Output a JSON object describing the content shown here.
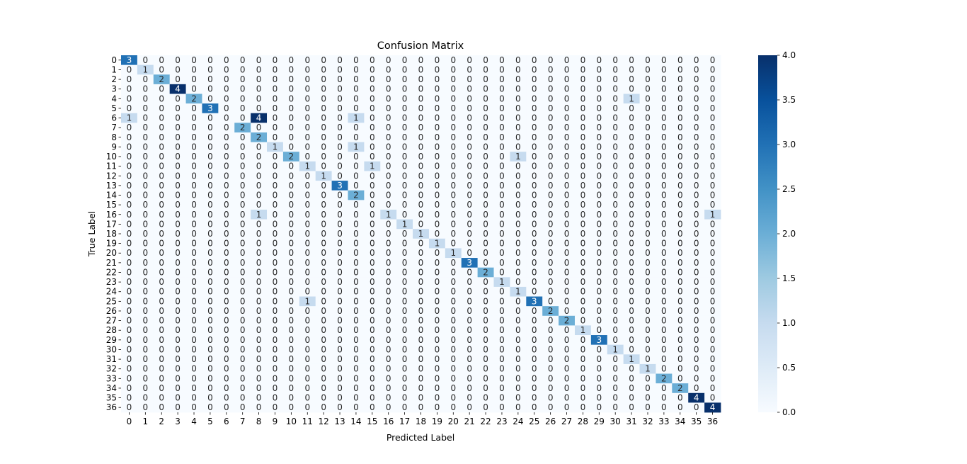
{
  "chart_data": {
    "type": "heatmap",
    "title": "Confusion Matrix",
    "xlabel": "Predicted Label",
    "ylabel": "True Label",
    "x_labels": [
      "0",
      "1",
      "2",
      "3",
      "4",
      "5",
      "6",
      "7",
      "8",
      "9",
      "10",
      "11",
      "12",
      "13",
      "14",
      "15",
      "16",
      "17",
      "18",
      "19",
      "20",
      "21",
      "22",
      "23",
      "24",
      "25",
      "26",
      "27",
      "28",
      "29",
      "30",
      "31",
      "32",
      "33",
      "34",
      "35",
      "36"
    ],
    "y_labels": [
      "0",
      "1",
      "2",
      "3",
      "4",
      "5",
      "6",
      "7",
      "8",
      "9",
      "10",
      "11",
      "12",
      "13",
      "14",
      "15",
      "16",
      "17",
      "18",
      "19",
      "20",
      "21",
      "22",
      "23",
      "24",
      "25",
      "26",
      "27",
      "28",
      "29",
      "30",
      "31",
      "32",
      "33",
      "34",
      "35",
      "36"
    ],
    "nonzero_cells": [
      {
        "true": 0,
        "pred": 0,
        "count": 3
      },
      {
        "true": 1,
        "pred": 1,
        "count": 1
      },
      {
        "true": 2,
        "pred": 2,
        "count": 2
      },
      {
        "true": 3,
        "pred": 3,
        "count": 4
      },
      {
        "true": 4,
        "pred": 4,
        "count": 2
      },
      {
        "true": 4,
        "pred": 31,
        "count": 1
      },
      {
        "true": 5,
        "pred": 5,
        "count": 3
      },
      {
        "true": 6,
        "pred": 0,
        "count": 1
      },
      {
        "true": 6,
        "pred": 8,
        "count": 4
      },
      {
        "true": 6,
        "pred": 14,
        "count": 1
      },
      {
        "true": 7,
        "pred": 7,
        "count": 2
      },
      {
        "true": 8,
        "pred": 8,
        "count": 2
      },
      {
        "true": 9,
        "pred": 9,
        "count": 1
      },
      {
        "true": 9,
        "pred": 14,
        "count": 1
      },
      {
        "true": 10,
        "pred": 10,
        "count": 2
      },
      {
        "true": 10,
        "pred": 24,
        "count": 1
      },
      {
        "true": 11,
        "pred": 11,
        "count": 1
      },
      {
        "true": 11,
        "pred": 15,
        "count": 1
      },
      {
        "true": 12,
        "pred": 12,
        "count": 1
      },
      {
        "true": 13,
        "pred": 13,
        "count": 3
      },
      {
        "true": 14,
        "pred": 14,
        "count": 2
      },
      {
        "true": 16,
        "pred": 8,
        "count": 1
      },
      {
        "true": 16,
        "pred": 16,
        "count": 1
      },
      {
        "true": 16,
        "pred": 36,
        "count": 1
      },
      {
        "true": 17,
        "pred": 17,
        "count": 1
      },
      {
        "true": 18,
        "pred": 18,
        "count": 1
      },
      {
        "true": 19,
        "pred": 19,
        "count": 1
      },
      {
        "true": 20,
        "pred": 20,
        "count": 1
      },
      {
        "true": 21,
        "pred": 21,
        "count": 3
      },
      {
        "true": 22,
        "pred": 22,
        "count": 2
      },
      {
        "true": 23,
        "pred": 23,
        "count": 1
      },
      {
        "true": 24,
        "pred": 24,
        "count": 1
      },
      {
        "true": 25,
        "pred": 11,
        "count": 1
      },
      {
        "true": 25,
        "pred": 25,
        "count": 3
      },
      {
        "true": 26,
        "pred": 26,
        "count": 2
      },
      {
        "true": 27,
        "pred": 27,
        "count": 2
      },
      {
        "true": 28,
        "pred": 28,
        "count": 1
      },
      {
        "true": 29,
        "pred": 29,
        "count": 3
      },
      {
        "true": 30,
        "pred": 30,
        "count": 1
      },
      {
        "true": 31,
        "pred": 31,
        "count": 1
      },
      {
        "true": 32,
        "pred": 32,
        "count": 1
      },
      {
        "true": 33,
        "pred": 33,
        "count": 2
      },
      {
        "true": 34,
        "pred": 34,
        "count": 2
      },
      {
        "true": 35,
        "pred": 35,
        "count": 4
      },
      {
        "true": 36,
        "pred": 36,
        "count": 4
      }
    ],
    "default_count": 0,
    "value_range": [
      0,
      4
    ],
    "colormap": "Blues",
    "colormap_low": "#f7fbff",
    "colormap_high": "#08306b",
    "colorbar_ticks": [
      "0.0",
      "0.5",
      "1.0",
      "1.5",
      "2.0",
      "2.5",
      "3.0",
      "3.5",
      "4.0"
    ],
    "colorbar_tick_values": [
      0,
      0.5,
      1,
      1.5,
      2,
      2.5,
      3,
      3.5,
      4
    ],
    "grid": false,
    "colorbar_position": "right"
  }
}
